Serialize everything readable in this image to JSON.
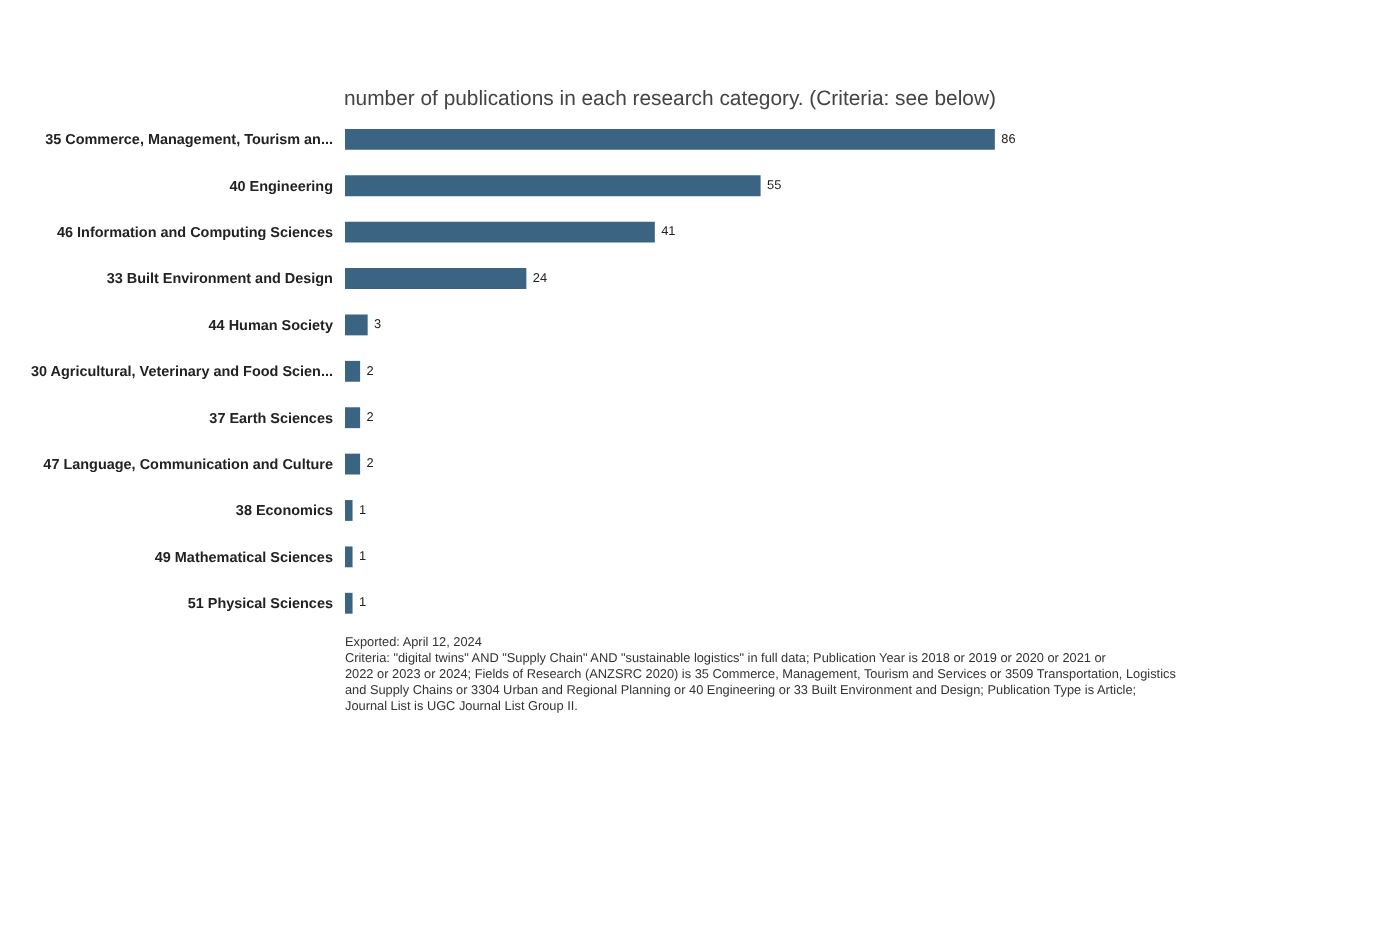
{
  "chart_data": {
    "type": "bar",
    "orientation": "horizontal",
    "title": "number of publications in each research category. (Criteria: see below)",
    "categories": [
      "35 Commerce, Management, Tourism an...",
      "40 Engineering",
      "46 Information and Computing Sciences",
      "33 Built Environment and Design",
      "44 Human Society",
      "30 Agricultural, Veterinary and Food Scien...",
      "37 Earth Sciences",
      "47 Language, Communication and Culture",
      "38 Economics",
      "49 Mathematical Sciences",
      "51 Physical Sciences"
    ],
    "values": [
      86,
      55,
      41,
      24,
      3,
      2,
      2,
      2,
      1,
      1,
      1
    ],
    "color": "#3a6482",
    "data_labels": true,
    "annotations": [
      "Exported: April 12, 2024",
      "Criteria: \"digital twins\" AND \"Supply Chain\" AND \"sustainable logistics\" in full data; Publication Year is 2018 or 2019 or 2020 or 2021 or 2022 or 2023 or 2024; Fields of Research (ANZSRC 2020) is 35 Commerce, Management, Tourism and Services or 3509 Transportation, Logistics and Supply Chains or 3304 Urban and Regional Planning or 40 Engineering or 33 Built Environment and Design; Publication Type is Article; Journal List is UGC Journal List Group II."
    ]
  }
}
